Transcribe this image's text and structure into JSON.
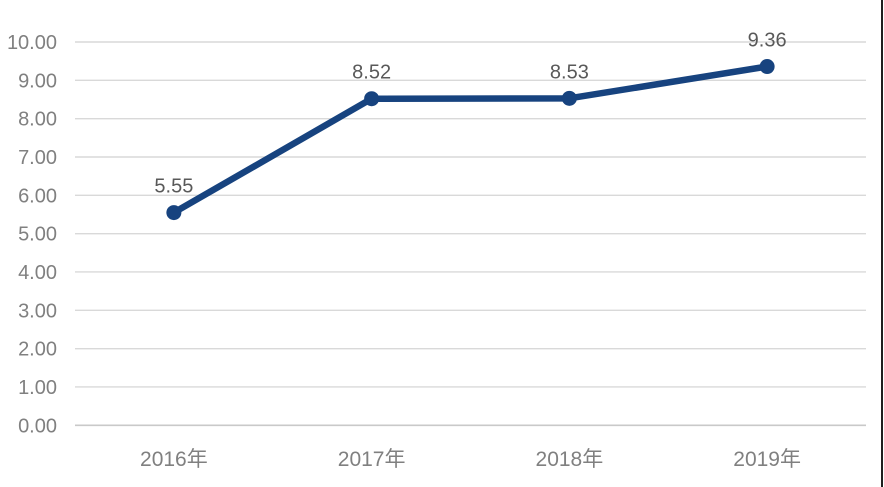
{
  "chart_data": {
    "type": "line",
    "title": "",
    "xlabel": "",
    "ylabel": "",
    "categories": [
      "2016年",
      "2017年",
      "2018年",
      "2019年"
    ],
    "values": [
      5.55,
      8.52,
      8.53,
      9.36
    ],
    "data_labels": [
      "5.55",
      "8.52",
      "8.53",
      "9.36"
    ],
    "y_tick_labels": [
      "0.00",
      "1.00",
      "2.00",
      "3.00",
      "4.00",
      "5.00",
      "6.00",
      "7.00",
      "8.00",
      "9.00",
      "10.00"
    ],
    "ylim": [
      0,
      10
    ],
    "y_tick_step": 1,
    "grid": "horizontal",
    "legend": "none",
    "colors": {
      "line": "#17437F",
      "marker": "#17437F",
      "gridline": "#D9D9D9",
      "axis_line": "#C9C9C9",
      "axis_text": "#808080",
      "data_label_text": "#595959",
      "background": "#FFFFFF",
      "window_edge": "#1F1F1F"
    }
  }
}
